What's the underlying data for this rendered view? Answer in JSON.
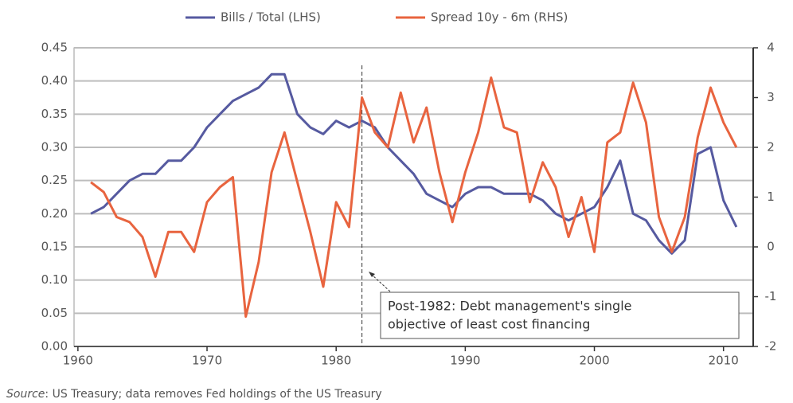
{
  "chart_data": {
    "type": "line",
    "legend": "top",
    "grid": true,
    "xlim": [
      1959.7,
      2012.3
    ],
    "xticks": [
      1960,
      1970,
      1980,
      1990,
      2000,
      2010
    ],
    "ylim": [
      0,
      0.45
    ],
    "yticks": [
      {
        "value": 0,
        "label": "0.00"
      },
      {
        "value": 0.05,
        "label": "0.05"
      },
      {
        "value": 0.1,
        "label": "0.10"
      },
      {
        "value": 0.15,
        "label": "0.15"
      },
      {
        "value": 0.2,
        "label": "0.20"
      },
      {
        "value": 0.25,
        "label": "0.25"
      },
      {
        "value": 0.3,
        "label": "0.30"
      },
      {
        "value": 0.35,
        "label": "0.35"
      },
      {
        "value": 0.4,
        "label": "0.40"
      },
      {
        "value": 0.45,
        "label": "0.45"
      }
    ],
    "y2lim": [
      -2,
      4
    ],
    "y2ticks": [
      -2,
      -1,
      0,
      1,
      2,
      3,
      4
    ],
    "x": [
      1961,
      1962,
      1963,
      1964,
      1965,
      1966,
      1967,
      1968,
      1969,
      1970,
      1971,
      1972,
      1973,
      1974,
      1975,
      1976,
      1977,
      1978,
      1979,
      1980,
      1981,
      1982,
      1983,
      1984,
      1985,
      1986,
      1987,
      1988,
      1989,
      1990,
      1991,
      1992,
      1993,
      1994,
      1995,
      1996,
      1997,
      1998,
      1999,
      2000,
      2001,
      2002,
      2003,
      2004,
      2005,
      2006,
      2007,
      2008,
      2009,
      2010,
      2011
    ],
    "series": [
      {
        "name": "Bills / Total (LHS)",
        "color": "#565aa0",
        "axis": "y",
        "values": [
          0.2,
          0.21,
          0.23,
          0.25,
          0.26,
          0.26,
          0.28,
          0.28,
          0.3,
          0.33,
          0.35,
          0.37,
          0.38,
          0.39,
          0.41,
          0.41,
          0.35,
          0.33,
          0.32,
          0.34,
          0.33,
          0.34,
          0.33,
          0.3,
          0.28,
          0.26,
          0.23,
          0.22,
          0.21,
          0.23,
          0.24,
          0.24,
          0.23,
          0.23,
          0.23,
          0.22,
          0.2,
          0.19,
          0.2,
          0.21,
          0.24,
          0.28,
          0.2,
          0.19,
          0.16,
          0.14,
          0.16,
          0.29,
          0.3,
          0.22,
          0.18
        ]
      },
      {
        "name": "Spread 10y - 6m (RHS)",
        "color": "#e8643f",
        "axis": "y2",
        "values": [
          1.3,
          1.1,
          0.6,
          0.5,
          0.2,
          -0.6,
          0.3,
          0.3,
          -0.1,
          0.9,
          1.2,
          1.4,
          -1.4,
          -0.3,
          1.5,
          2.3,
          1.3,
          0.3,
          -0.8,
          0.9,
          0.4,
          3.0,
          2.3,
          2.0,
          3.1,
          2.1,
          2.8,
          1.5,
          0.5,
          1.5,
          2.3,
          3.4,
          2.4,
          2.3,
          0.9,
          1.7,
          1.2,
          0.2,
          1.0,
          -0.1,
          2.1,
          2.3,
          3.3,
          2.5,
          0.6,
          -0.1,
          0.6,
          2.2,
          3.2,
          2.5,
          2.0
        ]
      }
    ],
    "annotation": {
      "x": 1982,
      "lines": [
        "Post-1982: Debt management's single",
        "objective of least cost financing"
      ]
    },
    "source_label": "Source",
    "source_text": ": US Treasury; data removes Fed holdings of the US Treasury"
  }
}
